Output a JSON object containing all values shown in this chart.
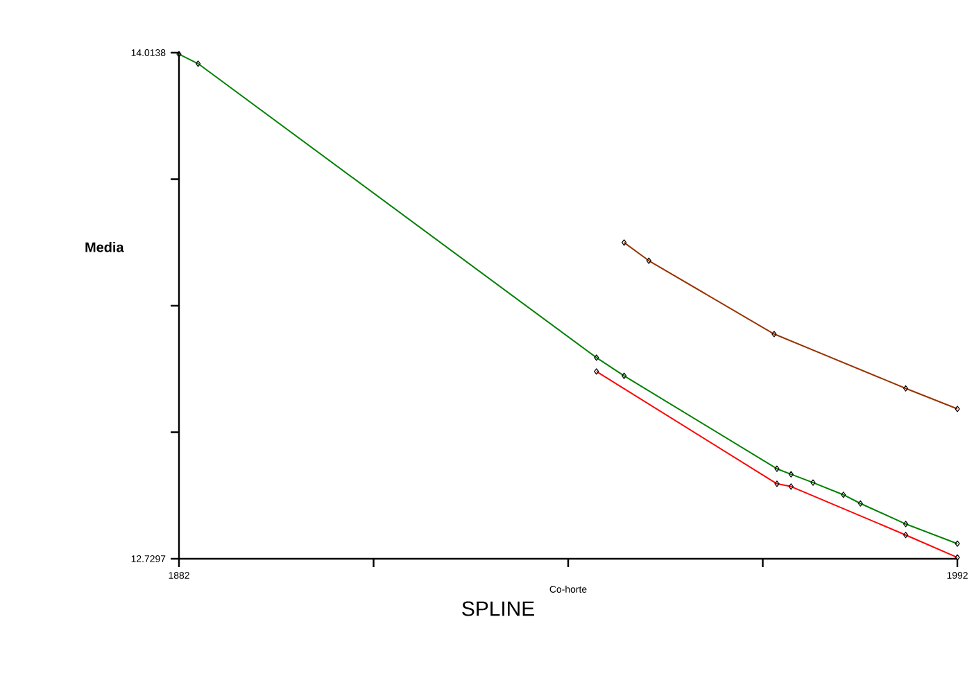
{
  "chart_data": {
    "type": "line",
    "title": "SPLINE",
    "xlabel": "Co-horte",
    "ylabel": "Media",
    "xlim": [
      1882,
      1992
    ],
    "ylim": [
      12.7297,
      14.0138
    ],
    "xticks": [
      1882,
      {
        "value": 1909.5,
        "label": null
      },
      {
        "value": 1937,
        "label": null
      },
      {
        "value": 1964.5,
        "label": null
      },
      1992
    ],
    "yticks": [
      12.7297,
      {
        "value": 13.0507,
        "label": null
      },
      {
        "value": 13.3718,
        "label": null
      },
      {
        "value": 13.6928,
        "label": null
      },
      14.0138
    ],
    "marker": "diamond",
    "line_style": "solid",
    "series": [
      {
        "color": "#008000",
        "x": [
          1882,
          1884.7,
          1941,
          1944.9,
          1966.5,
          1968.5,
          1971.6,
          1975.9,
          1978.3,
          1984.7,
          1992
        ],
        "values": [
          14.01,
          13.986,
          13.24,
          13.194,
          12.958,
          12.944,
          12.923,
          12.892,
          12.87,
          12.818,
          12.768
        ]
      },
      {
        "color": "#ff0000",
        "x": [
          1941,
          1966.5,
          1968.5,
          1984.7,
          1992
        ],
        "values": [
          13.205,
          12.92,
          12.913,
          12.79,
          12.733
        ]
      },
      {
        "color": "#993300",
        "x": [
          1944.9,
          1948.4,
          1966.1,
          1984.7,
          1992
        ],
        "values": [
          13.532,
          13.486,
          13.3,
          13.162,
          13.11
        ]
      }
    ]
  }
}
